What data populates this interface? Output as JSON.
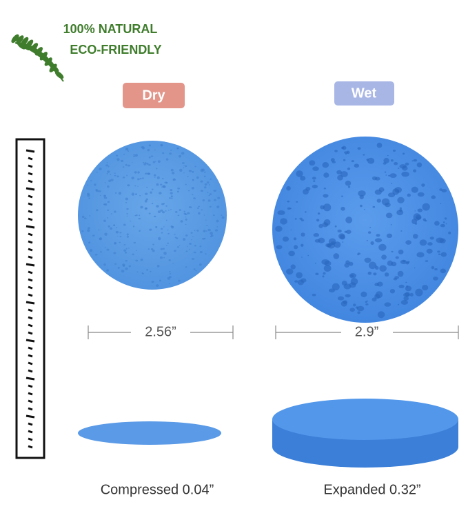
{
  "badge": {
    "line1": "100% NATURAL",
    "line2": "ECO-FRIENDLY"
  },
  "labels": {
    "dry": "Dry",
    "wet": "Wet"
  },
  "diameters": {
    "dry": "2.56”",
    "wet": "2.9”"
  },
  "thickness": {
    "dry": "Compressed 0.04”",
    "wet": "Expanded 0.32”"
  }
}
